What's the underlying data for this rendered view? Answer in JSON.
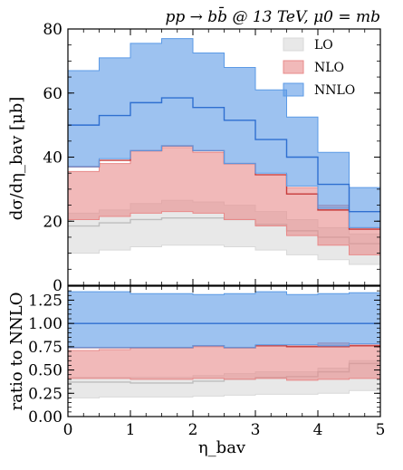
{
  "chart_data": {
    "type": "area",
    "title": "pp → bb̄ @ 13 TeV, μ0 = mb",
    "xlabel": "η_bav",
    "legend": {
      "placement": "top-right"
    },
    "x_edges": [
      0,
      0.5,
      1.0,
      1.5,
      2.0,
      2.5,
      3.0,
      3.5,
      4.0,
      4.5,
      5.0
    ],
    "panels": [
      {
        "name": "main",
        "ylabel": "dσ/dη_bav [μb]",
        "ylim": [
          0,
          80
        ],
        "yticks": [
          "0",
          "20",
          "40",
          "60",
          "80"
        ],
        "series": [
          {
            "name": "LO",
            "color": "#d9d9d9",
            "central": [
              18.5,
              19.5,
              20.5,
              21.0,
              21.0,
              20.5,
              19.0,
              17.0,
              15.0,
              13.0
            ],
            "lower": [
              10.0,
              11.0,
              12.0,
              12.5,
              12.5,
              12.0,
              11.0,
              9.5,
              8.0,
              6.5
            ],
            "upper": [
              22.5,
              23.5,
              25.5,
              26.5,
              26.0,
              25.0,
              23.0,
              20.5,
              18.0,
              16.0
            ]
          },
          {
            "name": "NLO",
            "color": "#e88a8a",
            "central": [
              37.0,
              39.0,
              42.0,
              43.5,
              42.0,
              38.0,
              34.5,
              28.5,
              23.5,
              17.5
            ],
            "lower": [
              20.5,
              21.5,
              22.5,
              23.0,
              22.5,
              20.5,
              18.5,
              15.5,
              12.5,
              9.5
            ],
            "upper": [
              35.5,
              38.0,
              42.0,
              43.0,
              41.5,
              38.0,
              34.5,
              30.5,
              25.0,
              18.0
            ]
          },
          {
            "name": "NNLO",
            "color": "#5b9ae6",
            "central": [
              50.0,
              53.0,
              57.0,
              58.5,
              55.5,
              51.5,
              45.5,
              40.0,
              31.5,
              23.0
            ],
            "lower": [
              37.0,
              39.5,
              42.0,
              43.5,
              42.0,
              38.0,
              35.0,
              31.0,
              24.0,
              18.0
            ],
            "upper": [
              67.0,
              71.0,
              75.5,
              77.0,
              72.5,
              68.0,
              61.0,
              52.5,
              41.5,
              30.5
            ]
          }
        ]
      },
      {
        "name": "ratio",
        "ylabel": "ratio to NNLO",
        "ylim": [
          0,
          1.4
        ],
        "yticks": [
          "0.00",
          "0.25",
          "0.50",
          "0.75",
          "1.00",
          "1.25"
        ],
        "series": [
          {
            "name": "LO",
            "color": "#d9d9d9",
            "central": [
              0.37,
              0.37,
              0.36,
              0.36,
              0.38,
              0.4,
              0.42,
              0.43,
              0.48,
              0.57
            ],
            "lower": [
              0.2,
              0.21,
              0.21,
              0.21,
              0.22,
              0.23,
              0.24,
              0.24,
              0.25,
              0.28
            ],
            "upper": [
              0.42,
              0.42,
              0.42,
              0.42,
              0.44,
              0.46,
              0.48,
              0.48,
              0.52,
              0.6
            ]
          },
          {
            "name": "NLO",
            "color": "#e88a8a",
            "central": [
              0.74,
              0.74,
              0.74,
              0.74,
              0.76,
              0.74,
              0.76,
              0.75,
              0.75,
              0.76
            ],
            "lower": [
              0.41,
              0.41,
              0.4,
              0.4,
              0.41,
              0.4,
              0.41,
              0.39,
              0.4,
              0.41
            ],
            "upper": [
              0.71,
              0.72,
              0.74,
              0.74,
              0.75,
              0.74,
              0.76,
              0.76,
              0.79,
              0.78
            ]
          },
          {
            "name": "NNLO",
            "color": "#5b9ae6",
            "central": [
              1.0,
              1.0,
              1.0,
              1.0,
              1.0,
              1.0,
              1.0,
              1.0,
              1.0,
              1.0
            ],
            "lower": [
              0.74,
              0.74,
              0.74,
              0.74,
              0.76,
              0.74,
              0.77,
              0.77,
              0.76,
              0.78
            ],
            "upper": [
              1.34,
              1.34,
              1.32,
              1.32,
              1.31,
              1.32,
              1.34,
              1.31,
              1.32,
              1.33
            ]
          }
        ]
      }
    ],
    "xticks": [
      "0",
      "1",
      "2",
      "3",
      "4",
      "5"
    ]
  }
}
